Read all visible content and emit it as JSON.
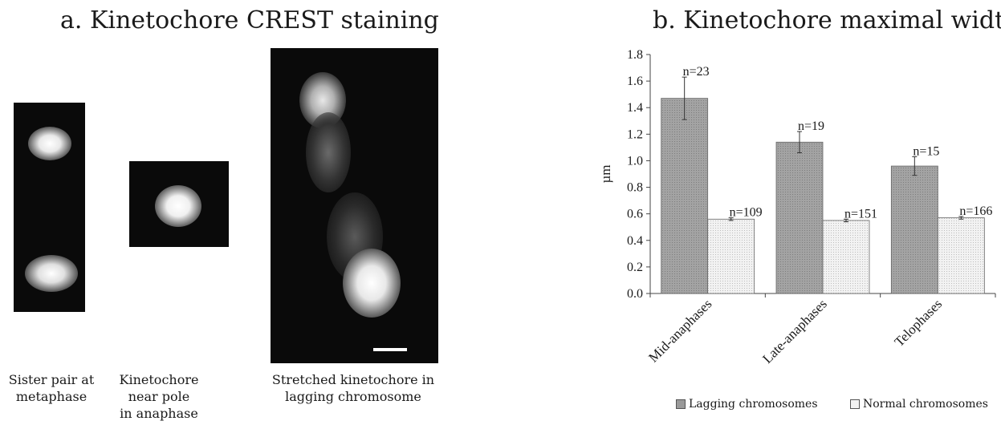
{
  "panel_a": {
    "title": "a. Kinetochore CREST staining",
    "captions": [
      "Sister pair at\nmetaphase",
      "Kinetochore\nnear pole\nin anaphase",
      "Stretched kinetochore in\nlagging chromosome"
    ]
  },
  "chart_data": {
    "type": "bar",
    "title": "b. Kinetochore maximal widths",
    "ylabel": "µm",
    "ylim": [
      0,
      1.8
    ],
    "yticks": [
      "0.0",
      "0.2",
      "0.4",
      "0.6",
      "0.8",
      "1.0",
      "1.2",
      "1.4",
      "1.6",
      "1.8"
    ],
    "grid": false,
    "legend_position": "bottom",
    "categories": [
      "Mid-anaphases",
      "Late-anaphases",
      "Telophases"
    ],
    "series": [
      {
        "name": "Lagging chromosomes",
        "color": "#9a9a9a",
        "values": [
          1.47,
          1.14,
          0.96
        ],
        "errors": [
          0.16,
          0.08,
          0.07
        ],
        "labels": [
          "n=23",
          "n=19",
          "n=15"
        ]
      },
      {
        "name": "Normal chromosomes",
        "color": "#ececec",
        "values": [
          0.56,
          0.55,
          0.57
        ],
        "errors": [
          0.01,
          0.01,
          0.01
        ],
        "labels": [
          "n=109",
          "n=151",
          "n=166"
        ]
      }
    ]
  }
}
